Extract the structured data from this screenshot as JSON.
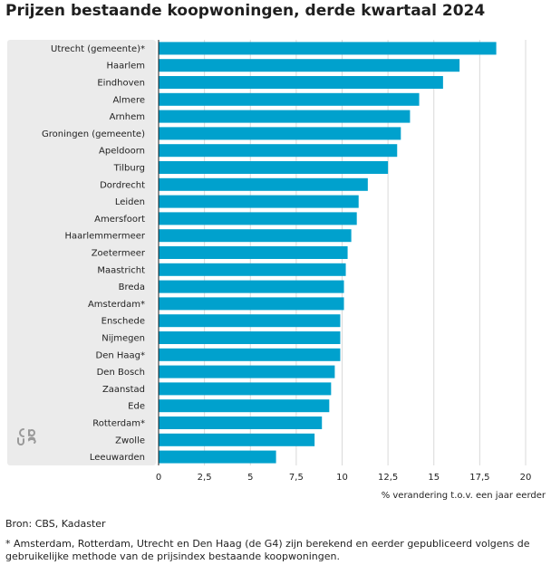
{
  "chart_data": {
    "type": "bar",
    "orientation": "horizontal",
    "title": "Prijzen bestaande koopwoningen, derde kwartaal 2024",
    "xlabel": "% verandering t.o.v. een jaar eerder",
    "ylabel": "",
    "xlim": [
      0,
      20
    ],
    "x_ticks": [
      "0",
      "2,5",
      "5",
      "7,5",
      "10",
      "12,5",
      "15",
      "17,5",
      "20"
    ],
    "x_tick_values": [
      0,
      2.5,
      5,
      7.5,
      10,
      12.5,
      15,
      17.5,
      20
    ],
    "grid": true,
    "bar_color": "#00a1cd",
    "label_panel_color": "#ebebeb",
    "grid_color": "#d9d9d9",
    "categories": [
      "Utrecht (gemeente)*",
      "Haarlem",
      "Eindhoven",
      "Almere",
      "Arnhem",
      "Groningen (gemeente)",
      "Apeldoorn",
      "Tilburg",
      "Dordrecht",
      "Leiden",
      "Amersfoort",
      "Haarlemmermeer",
      "Zoetermeer",
      "Maastricht",
      "Breda",
      "Amsterdam*",
      "Enschede",
      "Nijmegen",
      "Den Haag*",
      "Den Bosch",
      "Zaanstad",
      "Ede",
      "Rotterdam*",
      "Zwolle",
      "Leeuwarden"
    ],
    "values": [
      18.4,
      16.4,
      15.5,
      14.2,
      13.7,
      13.2,
      13.0,
      12.5,
      11.4,
      10.9,
      10.8,
      10.5,
      10.3,
      10.2,
      10.1,
      10.1,
      9.9,
      9.9,
      9.9,
      9.6,
      9.4,
      9.3,
      8.9,
      8.5,
      6.4
    ]
  },
  "source": "Bron: CBS, Kadaster",
  "footnote": "* Amsterdam, Rotterdam, Utrecht en Den Haag (de G4) zijn berekend en eerder gepubliceerd volgens de gebruikelijke methode van de prijsindex bestaande koopwoningen.",
  "logo_icon": "cbs-logo-icon"
}
